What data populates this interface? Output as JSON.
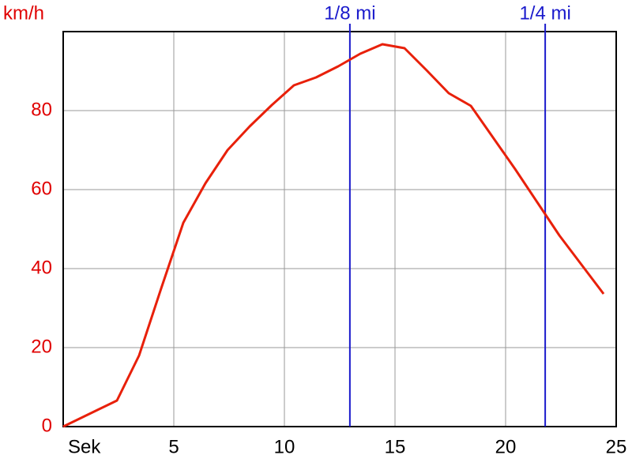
{
  "chart_data": {
    "type": "line",
    "x_label": "Sek",
    "y_label": "km/h",
    "x": [
      0,
      2.43,
      3.43,
      4.43,
      5.43,
      6.43,
      7.43,
      8.43,
      9.43,
      10.43,
      11.43,
      12.43,
      13.43,
      14.43,
      15.43,
      16.43,
      17.43,
      18.43,
      19.43,
      20.43,
      21.43,
      22.43,
      23.43,
      24.43
    ],
    "series": [
      {
        "name": "km/h",
        "color": "#e8200a",
        "values": [
          0,
          6.6,
          18,
          35,
          51.6,
          61.6,
          70,
          76,
          81.4,
          86.4,
          88.4,
          91.2,
          94.4,
          96.8,
          95.8,
          90.2,
          84.4,
          81.2,
          73.2,
          65.2,
          56.8,
          48.4,
          41,
          33.6
        ]
      }
    ],
    "xlim": [
      0,
      25
    ],
    "xticks": [
      5,
      10,
      15,
      20,
      25
    ],
    "ylim": [
      0,
      100
    ],
    "yticks": [
      0,
      20,
      40,
      60,
      80
    ],
    "grid": true,
    "markers": [
      {
        "label": "1/8 mi",
        "x": 12.96,
        "color": "#1a1acc"
      },
      {
        "label": "1/4 mi",
        "x": 21.79,
        "color": "#1a1acc"
      }
    ]
  }
}
